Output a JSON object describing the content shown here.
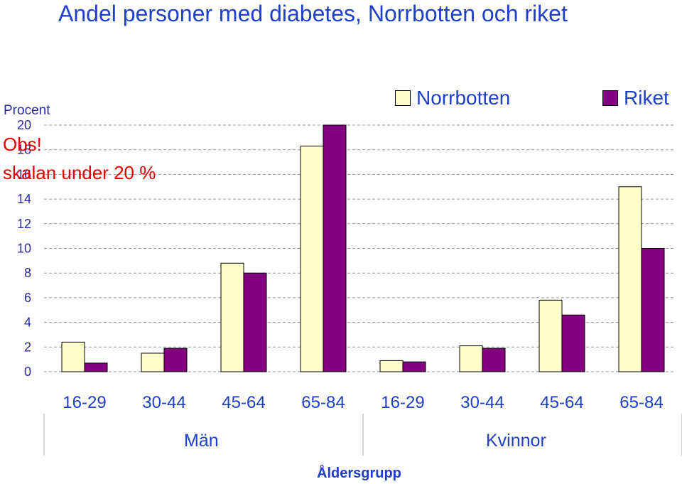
{
  "chart_data": {
    "type": "bar",
    "title": "Andel personer med diabetes, Norrbotten och riket",
    "ylabel": "Procent",
    "xlabel": "Åldersgrupp",
    "ylim": [
      0,
      20
    ],
    "yticks": [
      0,
      2,
      4,
      6,
      8,
      10,
      12,
      14,
      16,
      18,
      20
    ],
    "categories": [
      "16-29",
      "30-44",
      "45-64",
      "65-84",
      "16-29",
      "30-44",
      "45-64",
      "65-84"
    ],
    "groups": [
      {
        "label": "Män",
        "categories": [
          "16-29",
          "30-44",
          "45-64",
          "65-84"
        ]
      },
      {
        "label": "Kvinnor",
        "categories": [
          "16-29",
          "30-44",
          "45-64",
          "65-84"
        ]
      }
    ],
    "series": [
      {
        "name": "Norrbotten",
        "color": "#ffffcc",
        "values": [
          2.4,
          1.5,
          8.8,
          18.3,
          0.9,
          2.1,
          5.8,
          15.0
        ]
      },
      {
        "name": "Riket",
        "color": "#800080",
        "values": [
          0.7,
          1.9,
          8.0,
          20.0,
          0.8,
          1.9,
          4.6,
          10.0
        ]
      }
    ],
    "annotation": [
      "Obs!",
      "skalan under 20 %"
    ],
    "grid": true,
    "legend_position": "top-right"
  }
}
